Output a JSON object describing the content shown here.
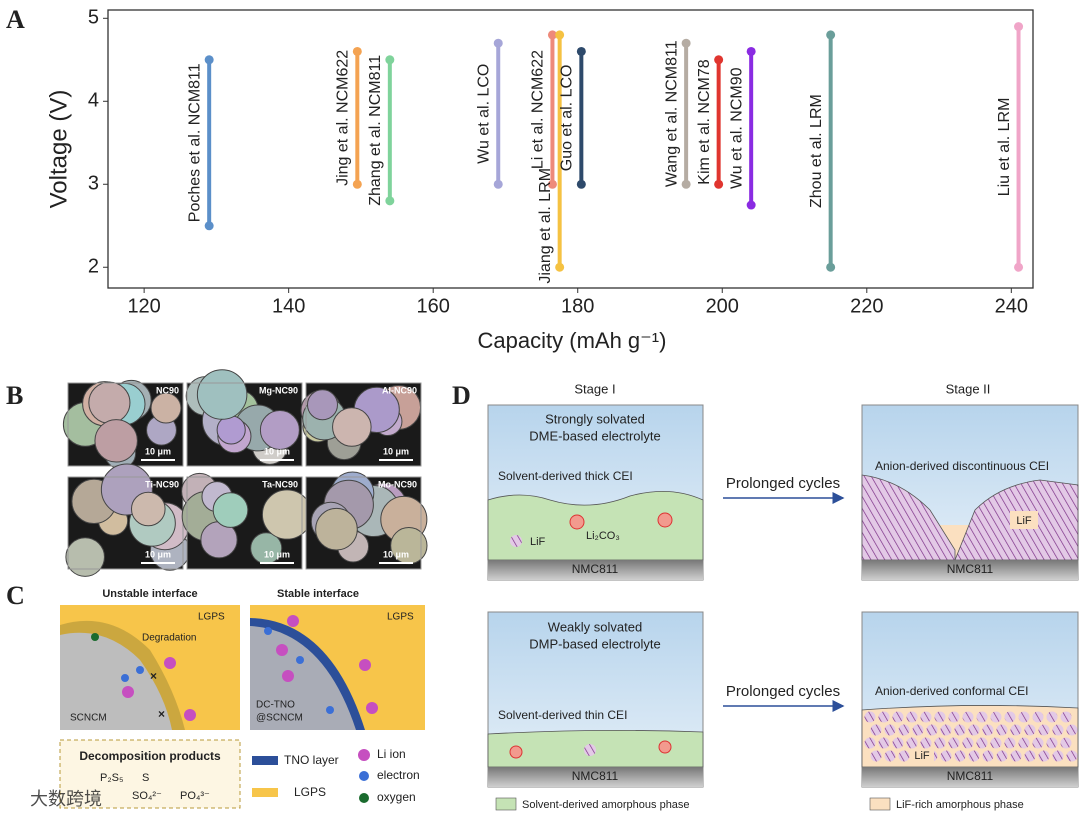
{
  "chart_data": {
    "type": "range",
    "panel_label": "A",
    "xlabel": "Capacity (mAh g⁻¹)",
    "ylabel": "Voltage (V)",
    "xlim": [
      115,
      243
    ],
    "xticks": [
      120,
      140,
      160,
      180,
      200,
      220,
      240
    ],
    "ylim": [
      1.75,
      5.1
    ],
    "yticks": [
      2,
      3,
      4,
      5
    ],
    "grid": false,
    "series": [
      {
        "name": "Poches et al. NCM811",
        "color": "#5b8fc9",
        "x": [
          129,
          129
        ],
        "values": [
          2.5,
          4.5
        ]
      },
      {
        "name": "Jing et al. NCM622",
        "color": "#f4a352",
        "x": [
          149.5,
          149.5
        ],
        "values": [
          3.0,
          4.6
        ]
      },
      {
        "name": "Zhang et al. NCM811",
        "color": "#7fd39b",
        "x": [
          154,
          154
        ],
        "values": [
          2.8,
          4.5
        ]
      },
      {
        "name": "Wu et al. LCO",
        "color": "#a6a6d8",
        "x": [
          169,
          169
        ],
        "values": [
          3.0,
          4.7
        ]
      },
      {
        "name": "Li et al. NCM622",
        "color": "#ee8a7a",
        "x": [
          176.5,
          176.5
        ],
        "values": [
          3.0,
          4.8
        ]
      },
      {
        "name": "Jiang et al. LRM",
        "color": "#f5c242",
        "x": [
          177.5,
          177.5
        ],
        "values": [
          2.0,
          4.8
        ]
      },
      {
        "name": "Guo et al. LCO",
        "color": "#2e4a6b",
        "x": [
          180.5,
          180.5
        ],
        "values": [
          3.0,
          4.6
        ]
      },
      {
        "name": "Wang et al. NCM811",
        "color": "#b5aca3",
        "x": [
          195,
          195
        ],
        "values": [
          3.0,
          4.7
        ]
      },
      {
        "name": "Kim et al. NCM78",
        "color": "#e0352f",
        "x": [
          199.5,
          199.5
        ],
        "values": [
          3.0,
          4.5
        ]
      },
      {
        "name": "Wu et al. NCM90",
        "color": "#8a2be2",
        "x": [
          204,
          204
        ],
        "values": [
          2.75,
          4.6
        ]
      },
      {
        "name": "Zhou et al. LRM",
        "color": "#6a9e9a",
        "x": [
          215,
          215
        ],
        "values": [
          2.0,
          4.8
        ]
      },
      {
        "name": "Liu et al. LRM",
        "color": "#f0a5c8",
        "x": [
          241,
          241
        ],
        "values": [
          2.0,
          4.9
        ]
      }
    ]
  },
  "panel_b": {
    "label": "B",
    "images": [
      "NC90",
      "Mg-NC90",
      "Al-NC90",
      "Ti-NC90",
      "Ta-NC90",
      "Mo-NC90"
    ],
    "scale_bar": "10 μm"
  },
  "panel_c": {
    "label": "C",
    "left_title": "Unstable interface",
    "right_title": "Stable interface",
    "lgps": "LGPS",
    "degradation": "Degradation",
    "scncm": "SCNCM",
    "dc_tno": [
      "DC-TNO",
      "@SCNCM"
    ],
    "ion": "Li⁺",
    "decomposition": {
      "title": "Decomposition products",
      "items": [
        "P₂S₅",
        "S",
        "SO₄²⁻",
        "PO₄³⁻"
      ]
    },
    "legend": [
      "TNO layer",
      "LGPS",
      "Li ion",
      "electron",
      "oxygen"
    ]
  },
  "panel_d": {
    "label": "D",
    "stages": [
      "Stage I",
      "Stage II"
    ],
    "substrate": "NMC811",
    "arrow": "Prolonged cycles",
    "top_left": {
      "electrolyte": [
        "Strongly solvated",
        "DME-based electrolyte"
      ],
      "cei": "Solvent-derived thick CEI",
      "lif": "LiF",
      "li2co3": "Li₂CO₃"
    },
    "top_right": {
      "cei": "Anion-derived discontinuous CEI",
      "lif": "LiF"
    },
    "bottom_left": {
      "electrolyte": [
        "Weakly solvated",
        "DMP-based electrolyte"
      ],
      "cei": "Solvent-derived thin CEI"
    },
    "bottom_right": {
      "cei": "Anion-derived conformal CEI",
      "lif": "LiF"
    },
    "legend": [
      "Solvent-derived amorphous phase",
      "LiF-rich amorphous phase"
    ]
  },
  "watermark": "大数跨境"
}
